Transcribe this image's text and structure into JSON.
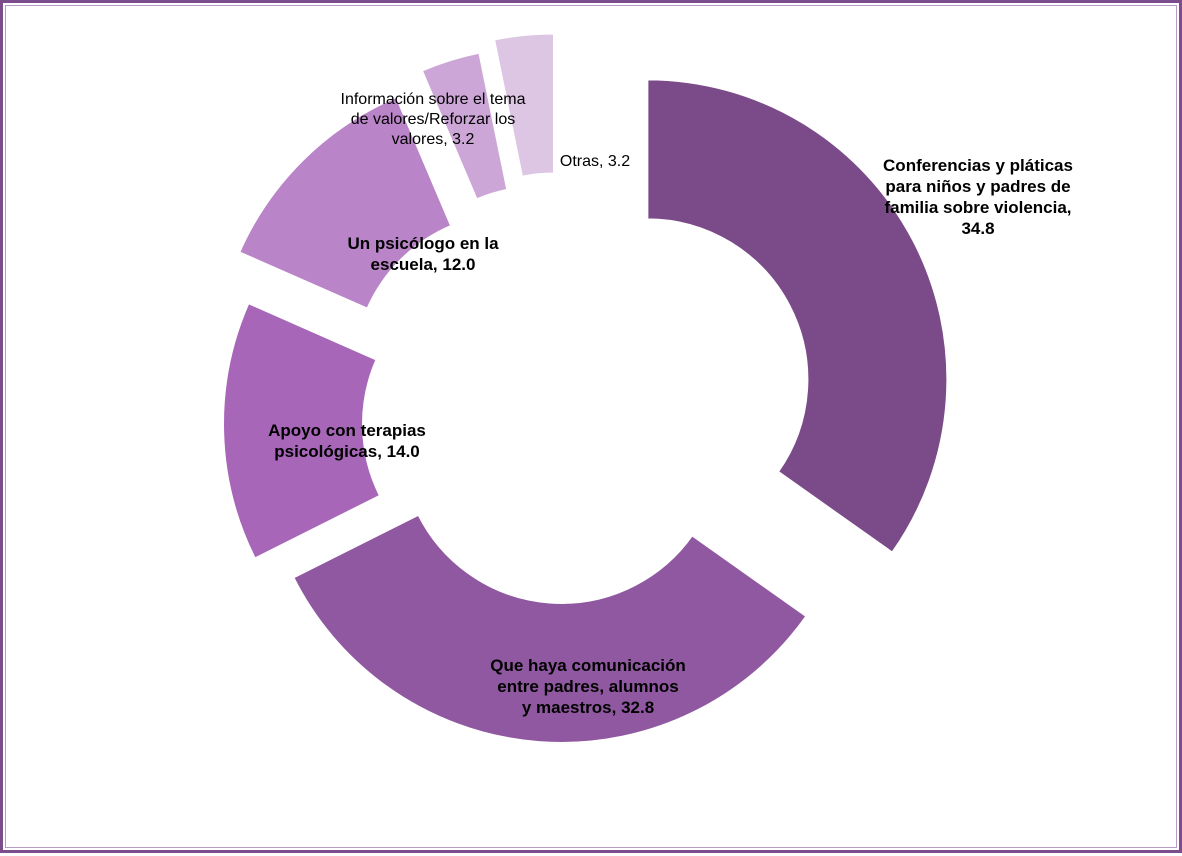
{
  "chart_data": {
    "type": "pie",
    "variant": "doughnut-exploded",
    "slices": [
      {
        "category": "Conferencias y pláticas para niños y padres de familia sobre violencia",
        "value": 34.8,
        "label_lines": [
          "Conferencias y pláticas",
          "para niños y padres de",
          "familia sobre violencia,",
          "34.8"
        ],
        "color": "#7b4a88",
        "bold": true
      },
      {
        "category": "Que haya comunicación entre padres, alumnos y maestros",
        "value": 32.8,
        "label_lines": [
          "Que haya comunicación",
          "entre padres, alumnos",
          "y maestros, 32.8"
        ],
        "color": "#8f58a0",
        "bold": true
      },
      {
        "category": "Apoyo con terapias psicológicas",
        "value": 14.0,
        "label_lines": [
          "Apoyo con terapias",
          "psicológicas, 14.0"
        ],
        "color": "#a766b8",
        "bold": true
      },
      {
        "category": "Un psicólogo en la escuela",
        "value": 12.0,
        "label_lines": [
          "Un psicólogo en la",
          "escuela, 12.0"
        ],
        "color": "#ba84c8",
        "bold": true
      },
      {
        "category": "Información sobre el tema de valores/Reforzar los valores",
        "value": 3.2,
        "label_lines": [
          "Información sobre el tema",
          "de valores/Reforzar los",
          "valores, 3.2"
        ],
        "color": "#cca6d6",
        "bold": false
      },
      {
        "category": "Otras",
        "value": 3.2,
        "label_lines": [
          "Otras, 3.2"
        ],
        "color": "#dcc6e3",
        "bold": false
      }
    ]
  }
}
